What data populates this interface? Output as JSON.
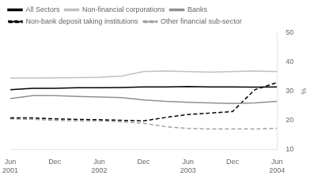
{
  "chart_data": {
    "type": "line",
    "y_label": "%",
    "categories": [
      "Jun\n2001",
      null,
      "Dec",
      null,
      "Jun\n2002",
      null,
      "Dec",
      null,
      "Jun\n2003",
      null,
      "Dec",
      null,
      "Jun\n2004"
    ],
    "ylim": [
      10,
      50
    ],
    "yticks": [
      10,
      20,
      30,
      40,
      50
    ],
    "grid": false,
    "legend": "upper left",
    "series": [
      {
        "name": "All Sectors",
        "color": "#000000",
        "line_style": "solid",
        "values": [
          30.5,
          31.0,
          31.0,
          31.2,
          31.2,
          31.3,
          31.5,
          31.5,
          31.6,
          31.5,
          31.5,
          31.4,
          31.5
        ]
      },
      {
        "name": "Non-financial corporations",
        "color": "#c0c0c0",
        "line_style": "solid",
        "values": [
          34.5,
          34.5,
          34.6,
          34.7,
          34.8,
          35.2,
          36.8,
          37.0,
          36.8,
          36.6,
          36.8,
          37.0,
          36.8
        ]
      },
      {
        "name": "Banks",
        "color": "#909090",
        "line_style": "solid",
        "values": [
          27.5,
          28.5,
          28.5,
          28.2,
          28.0,
          27.8,
          27.0,
          26.5,
          26.2,
          26.0,
          25.8,
          26.0,
          26.5
        ]
      },
      {
        "name": "Non-bank deposit taking institutions",
        "color": "#000000",
        "line_style": "dashed",
        "values": [
          20.8,
          20.8,
          20.5,
          20.3,
          20.2,
          20.0,
          19.8,
          21.0,
          22.0,
          22.5,
          23.0,
          30.5,
          33.0
        ]
      },
      {
        "name": "Other financial sub-sector",
        "color": "#a0a0a0",
        "line_style": "dashed",
        "values": [
          20.5,
          20.3,
          20.0,
          19.8,
          19.8,
          19.5,
          19.0,
          17.8,
          17.2,
          17.0,
          17.0,
          17.0,
          17.2
        ]
      }
    ]
  }
}
